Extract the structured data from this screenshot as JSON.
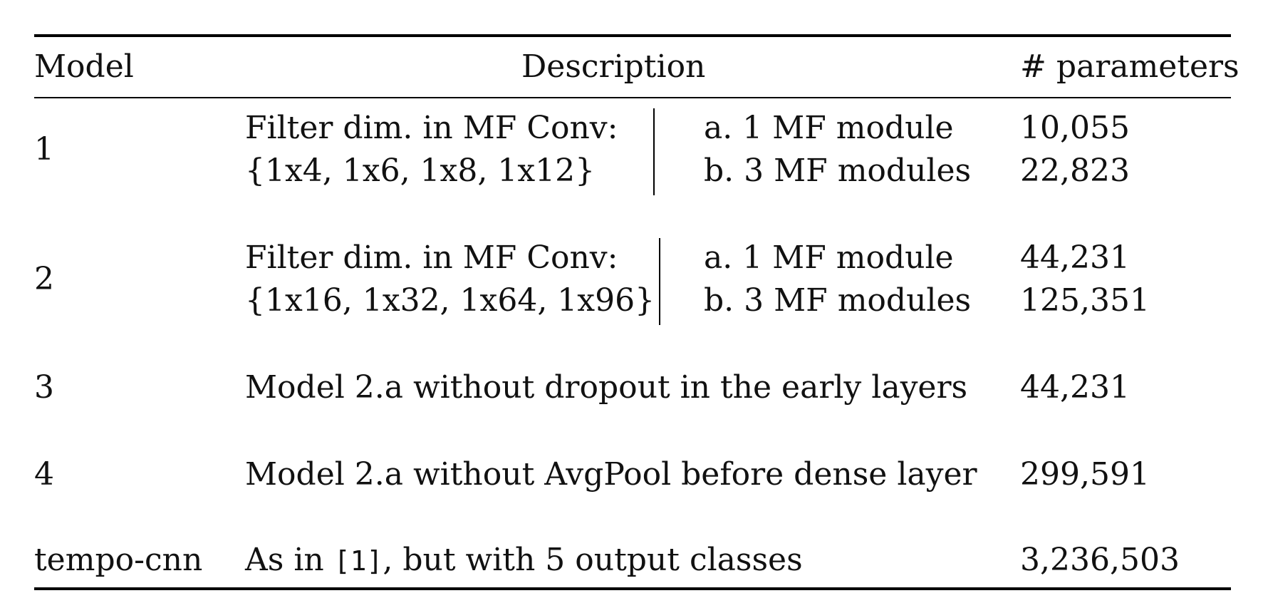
{
  "table": {
    "headers": {
      "model": "Model",
      "description": "Description",
      "params": "# parameters"
    },
    "rows": [
      {
        "model": "1",
        "filter_label": "Filter dim. in MF Conv:",
        "filter_dims": "{1x4, 1x6, 1x8, 1x12}",
        "variant_a": "a. 1 MF module",
        "variant_b": "b. 3 MF modules",
        "params_a": "10,055",
        "params_b": "22,823"
      },
      {
        "model": "2",
        "filter_label": "Filter dim. in MF Conv:",
        "filter_dims": "{1x16, 1x32, 1x64, 1x96}",
        "variant_a": "a. 1 MF module",
        "variant_b": "b. 3 MF modules",
        "params_a": "44,231",
        "params_b": "125,351"
      },
      {
        "model": "3",
        "description": "Model 2.a without dropout in the early layers",
        "params": "44,231"
      },
      {
        "model": "4",
        "description": "Model 2.a without AvgPool before dense layer",
        "params": "299,591"
      },
      {
        "model": "tempo-cnn",
        "description_prefix": "As in ",
        "citation": "[1]",
        "description_suffix": ", but with 5 output classes",
        "params": "3,236,503"
      }
    ]
  }
}
